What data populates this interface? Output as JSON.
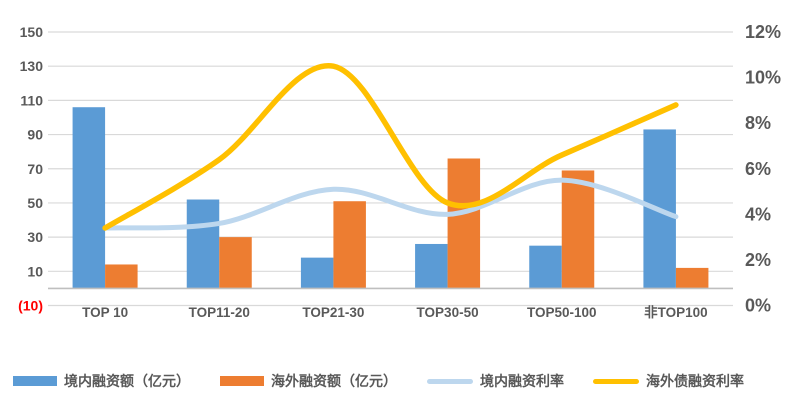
{
  "chart_data": {
    "type": "combo_bar_line",
    "title": "",
    "categories": [
      "TOP 10",
      "TOP11-20",
      "TOP21-30",
      "TOP30-50",
      "TOP50-100",
      "非TOP100"
    ],
    "series": [
      {
        "name": "境内融资额（亿元）",
        "type": "bar",
        "axis": "left",
        "color": "#5B9BD5",
        "values": [
          106,
          52,
          18,
          26,
          25,
          93
        ],
        "unit": "亿元"
      },
      {
        "name": "海外融资额（亿元）",
        "type": "bar",
        "axis": "left",
        "color": "#ED7D31",
        "values": [
          14,
          30,
          51,
          76,
          69,
          12
        ],
        "unit": "亿元"
      },
      {
        "name": "境内融资利率",
        "type": "line",
        "axis": "right",
        "color": "#BDD7EE",
        "values": [
          3.4,
          3.6,
          5.1,
          4.0,
          5.5,
          3.9
        ],
        "unit": "%"
      },
      {
        "name": "海外债融资利率",
        "type": "line",
        "axis": "right",
        "color": "#FFC000",
        "values": [
          3.4,
          6.4,
          10.5,
          4.5,
          6.6,
          8.8
        ],
        "unit": "%"
      }
    ],
    "left_axis": {
      "tick_labels": [
        "150",
        "130",
        "110",
        "90",
        "70",
        "50",
        "30",
        "10",
        "(10)"
      ],
      "tick_values": [
        150,
        130,
        110,
        90,
        70,
        50,
        30,
        10,
        -10
      ],
      "min": -10,
      "max": 150,
      "label_color": "#595959",
      "negative_label": "(10)",
      "negative_label_color": "#FF0000"
    },
    "right_axis": {
      "tick_labels": [
        "12%",
        "10%",
        "8%",
        "6%",
        "4%",
        "2%",
        "0%"
      ],
      "tick_values": [
        12,
        10,
        8,
        6,
        4,
        2,
        0
      ],
      "min": 0,
      "max": 12,
      "label_color": "#595959"
    },
    "grid": true,
    "gridline_color": "#D9D9D9",
    "axis_line_color": "#BFBFBF",
    "category_label_color": "#595959",
    "background": "#FFFFFF",
    "legend_position": "bottom"
  }
}
